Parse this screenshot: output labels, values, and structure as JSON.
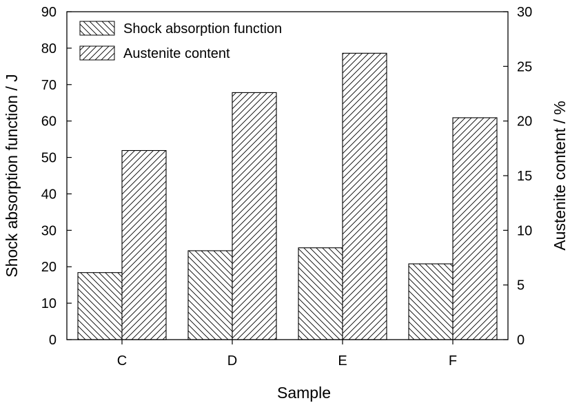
{
  "chart_data": {
    "type": "bar",
    "categories": [
      "C",
      "D",
      "E",
      "F"
    ],
    "xlabel": "Sample",
    "ylabel_left": "Shock absorption function / J",
    "ylabel_right": "Austenite content / %",
    "ylim_left": [
      0,
      90
    ],
    "ylim_right": [
      0,
      30
    ],
    "yticks_left": [
      "0",
      "10",
      "20",
      "30",
      "40",
      "50",
      "60",
      "70",
      "80",
      "90"
    ],
    "yticks_right": [
      "0",
      "5",
      "10",
      "15",
      "20",
      "25",
      "30"
    ],
    "legend_position": "top-left",
    "grid": false,
    "series": [
      {
        "name": "Shock absorption function",
        "axis": "left",
        "hatch": "backslash",
        "values": [
          18.4,
          24.4,
          25.2,
          20.8
        ]
      },
      {
        "name": "Austenite content",
        "axis": "right",
        "hatch": "slash",
        "values": [
          17.3,
          22.6,
          26.2,
          20.3
        ]
      }
    ],
    "colors": {
      "bar_fill": "#ffffff",
      "hatch": "#000000",
      "outline": "#000000"
    }
  }
}
